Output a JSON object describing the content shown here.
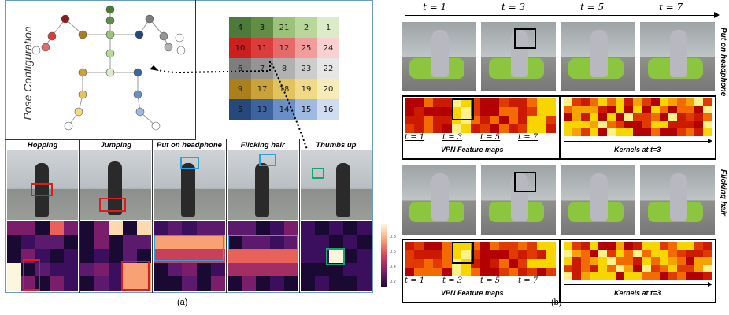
{
  "panel_a": {
    "pose_title": "Pose Configuration",
    "caption": "(a)",
    "grid": [
      [
        "4",
        "3",
        "21",
        "2",
        "1"
      ],
      [
        "10",
        "11",
        "12",
        "25",
        "24"
      ],
      [
        "6",
        "7",
        "8",
        "23",
        "22"
      ],
      [
        "9",
        "17",
        "18",
        "19",
        "20"
      ],
      [
        "5",
        "13",
        "14",
        "15",
        "16"
      ]
    ],
    "grid_colors": [
      [
        "#4c7a3a",
        "#5f8e44",
        "#9bc27a",
        "#b7d89a",
        "#dcebc8"
      ],
      [
        "#cc2020",
        "#dc3c3c",
        "#e66a6a",
        "#f29c9c",
        "#fbd0d0"
      ],
      [
        "#7d7d7d",
        "#959595",
        "#b1b1b1",
        "#cdcdcd",
        "#e6e6e6"
      ],
      [
        "#a9801c",
        "#c9a23a",
        "#e1c45e",
        "#f0da86",
        "#f7ecb8"
      ],
      [
        "#27487d",
        "#3e64a0",
        "#6a8fc6",
        "#9fb9e0",
        "#cfdcf2"
      ]
    ],
    "actions": [
      "Hopping",
      "Jumping",
      "Put on headphone",
      "Flicking hair",
      "Thumbs up"
    ],
    "colorbar_ticks": [
      "0.8",
      "0.6",
      "0.4",
      "0.2"
    ]
  },
  "panel_b": {
    "time_labels": [
      "t = 1",
      "t = 3",
      "t = 5",
      "t = 7"
    ],
    "side_top": "Put on headphone",
    "side_bottom": "Flicking hair",
    "feature_maps_label": "VPN Feature maps",
    "kernels_label": "Kernels at t=3",
    "caption": "(b)"
  }
}
